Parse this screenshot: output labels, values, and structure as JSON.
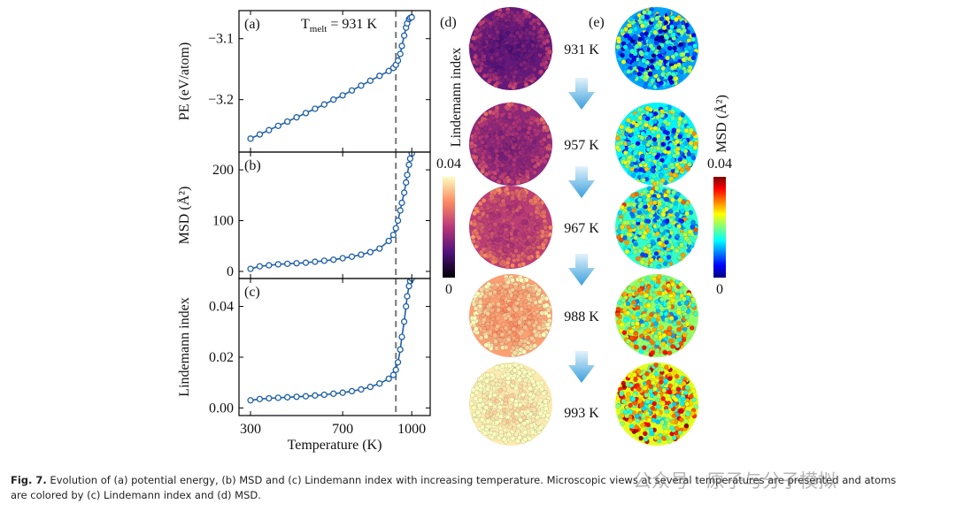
{
  "chart_data": [
    {
      "type": "line",
      "panel_label": "(a)",
      "y_label": "PE (eV/atom)",
      "x": [
        300,
        340,
        380,
        420,
        460,
        500,
        540,
        580,
        620,
        660,
        700,
        740,
        780,
        820,
        860,
        900,
        920,
        931,
        940,
        950,
        957,
        967,
        975,
        980,
        988,
        993,
        1000
      ],
      "values": [
        -3.264,
        -3.257,
        -3.25,
        -3.243,
        -3.236,
        -3.229,
        -3.222,
        -3.215,
        -3.208,
        -3.2,
        -3.193,
        -3.185,
        -3.177,
        -3.169,
        -3.161,
        -3.153,
        -3.148,
        -3.143,
        -3.136,
        -3.125,
        -3.112,
        -3.095,
        -3.082,
        -3.075,
        -3.068,
        -3.066,
        -3.065
      ],
      "color": "#1f5fa6",
      "xlim": [
        250,
        1080
      ],
      "xticks": [
        300,
        700,
        1000
      ],
      "xtick_labels": false,
      "ylim": [
        -3.286,
        -3.054
      ],
      "yticks": [
        {
          "value": -3.2,
          "label": "−3.2"
        },
        {
          "value": -3.1,
          "label": "−3.1"
        }
      ],
      "vline": 931,
      "annotation": {
        "main": "T",
        "sub": "melt",
        "rest": " = 931 K"
      }
    },
    {
      "type": "line",
      "panel_label": "(b)",
      "y_label": "MSD (Å²)",
      "x": [
        300,
        340,
        380,
        420,
        460,
        500,
        540,
        580,
        620,
        660,
        700,
        740,
        780,
        820,
        860,
        900,
        920,
        931,
        940,
        950,
        957,
        967,
        975,
        980,
        988,
        993,
        1000
      ],
      "values": [
        5,
        10,
        12,
        14,
        15,
        16,
        17,
        19,
        21,
        23,
        26,
        29,
        33,
        38,
        45,
        60,
        72,
        85,
        100,
        120,
        135,
        155,
        175,
        190,
        210,
        222,
        232
      ],
      "color": "#1f5fa6",
      "xlim": [
        250,
        1080
      ],
      "xticks": [
        300,
        700,
        1000
      ],
      "xtick_labels": false,
      "ylim": [
        -14,
        235
      ],
      "yticks": [
        0,
        100,
        200
      ],
      "vline": 931
    },
    {
      "type": "line",
      "panel_label": "(c)",
      "y_label": "Lindemann index",
      "x_label": "Temperature (K)",
      "x": [
        300,
        340,
        380,
        420,
        460,
        500,
        540,
        580,
        620,
        660,
        700,
        740,
        780,
        820,
        860,
        900,
        920,
        931,
        940,
        950,
        957,
        967,
        975,
        980,
        988,
        993,
        1000
      ],
      "values": [
        0.003,
        0.0035,
        0.0038,
        0.004,
        0.0042,
        0.0044,
        0.0046,
        0.0049,
        0.0052,
        0.0056,
        0.006,
        0.0066,
        0.0073,
        0.0083,
        0.0096,
        0.0115,
        0.013,
        0.015,
        0.018,
        0.023,
        0.028,
        0.034,
        0.04,
        0.044,
        0.048,
        0.05,
        0.051
      ],
      "color": "#1f5fa6",
      "xlim": [
        250,
        1080
      ],
      "xticks": [
        300,
        700,
        1000
      ],
      "xtick_labels": true,
      "ylim": [
        -0.003,
        0.051
      ],
      "yticks": [
        {
          "value": 0,
          "label": "0.00"
        },
        0.02,
        0.04
      ],
      "vline": 931
    }
  ],
  "images": {
    "panel_d": "(d)",
    "panel_e": "(e)",
    "temperatures": [
      "931 K",
      "957 K",
      "967 K",
      "988 K",
      "993 K"
    ],
    "colorbar_d": {
      "label": "Lindemann index",
      "max": "0.04",
      "min": "0"
    },
    "colorbar_e": {
      "label": "MSD (Å²)",
      "max": "0.04",
      "min": "0"
    }
  },
  "caption": {
    "lead": "Fig. 7.",
    "line1": " Evolution of (a) potential energy, (b) MSD and (c) Lindemann index with increasing temperature. Microscopic views at several temperatures are presented and atoms",
    "line2": "are colored by (c) Lindemann index and (d) MSD."
  },
  "watermark": "公众号 · 原子与分子模拟"
}
